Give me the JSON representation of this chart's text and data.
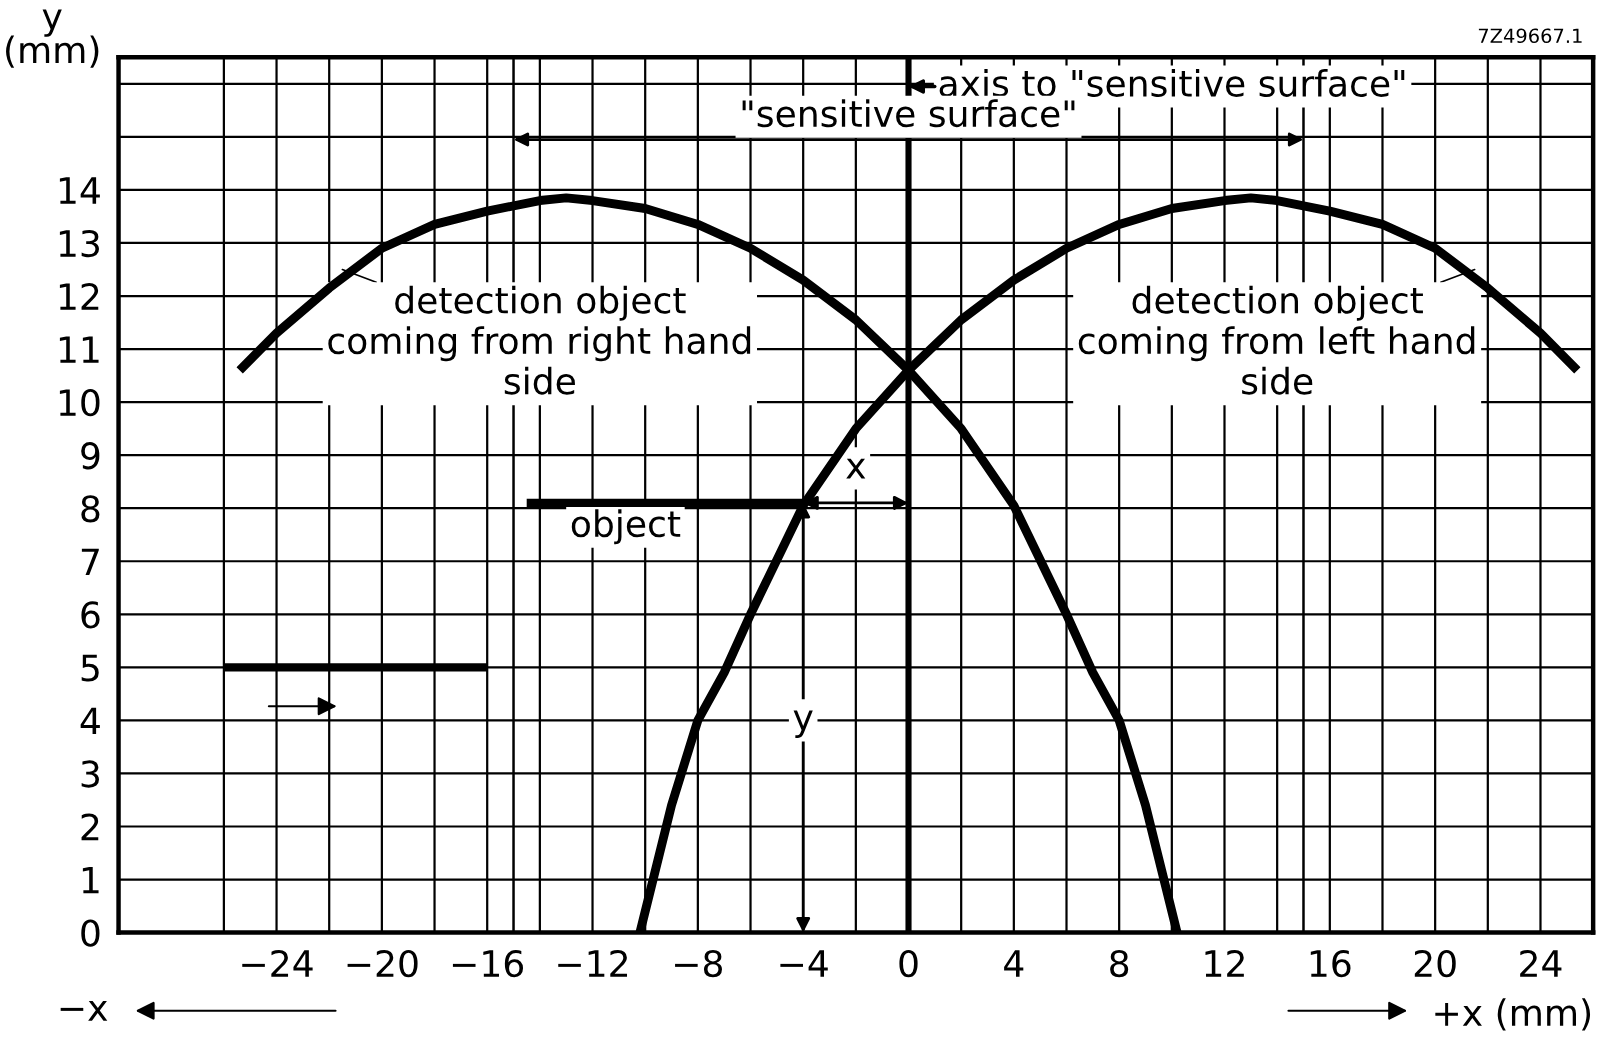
{
  "chart_data": {
    "type": "line",
    "xlabel": "+x (mm)",
    "ylabel": "y\n(mm)",
    "xlim": [
      -30,
      26
    ],
    "ylim": [
      0,
      16.5
    ],
    "xticks": [
      {
        "value": -26,
        "label": null
      },
      -24,
      {
        "value": -22,
        "label": null
      },
      -20,
      {
        "value": -18,
        "label": null
      },
      -16,
      {
        "value": -14,
        "label": null
      },
      -12,
      {
        "value": -10,
        "label": null
      },
      -8,
      {
        "value": -6,
        "label": null
      },
      -4,
      {
        "value": -2,
        "label": null
      },
      0,
      {
        "value": 2,
        "label": null
      },
      4,
      {
        "value": 6,
        "label": null
      },
      8,
      {
        "value": 10,
        "label": null
      },
      12,
      {
        "value": 14,
        "label": null
      },
      16,
      {
        "value": 18,
        "label": null
      },
      20,
      {
        "value": 22,
        "label": null
      },
      24
    ],
    "yticks": [
      0,
      1,
      2,
      3,
      4,
      5,
      6,
      7,
      8,
      9,
      10,
      11,
      12,
      13,
      14,
      {
        "value": 15,
        "label": null
      },
      {
        "value": 16,
        "label": null
      }
    ],
    "grid": true,
    "line_style": "solid",
    "series": [
      {
        "color": "#000000",
        "x": [
          -25.4,
          -24,
          -22,
          -20,
          -18,
          -16,
          -14,
          -13,
          -12,
          -10,
          -8,
          -6,
          -4,
          -2,
          0,
          2,
          4,
          6,
          7,
          8,
          9,
          10.2
        ],
        "values": [
          10.6,
          11.3,
          12.15,
          12.9,
          13.35,
          13.6,
          13.8,
          13.85,
          13.8,
          13.65,
          13.35,
          12.9,
          12.3,
          11.55,
          10.6,
          9.5,
          8.05,
          6.0,
          4.9,
          4.0,
          2.4,
          0
        ]
      },
      {
        "color": "#000000",
        "x": [
          -10.2,
          -9,
          -8,
          -7,
          -6,
          -4,
          -2,
          0,
          2,
          4,
          6,
          8,
          10,
          12,
          13,
          14,
          16,
          18,
          20,
          22,
          24,
          25.4
        ],
        "values": [
          0,
          2.4,
          4.0,
          4.9,
          6.0,
          8.05,
          9.5,
          10.6,
          11.55,
          12.3,
          12.9,
          13.35,
          13.65,
          13.8,
          13.85,
          13.8,
          13.6,
          13.35,
          12.9,
          12.15,
          11.3,
          10.6
        ]
      },
      {
        "color": "#000000",
        "x": [
          -14.5,
          -4
        ],
        "values": [
          8.1,
          8.1
        ]
      },
      {
        "color": "#000000",
        "x": [
          -26,
          -16
        ],
        "values": [
          5,
          5
        ]
      }
    ],
    "ref_lines": [
      {
        "axis": "x",
        "value": 0,
        "label": "axis to \"sensitive surface\"",
        "color": "#000000"
      },
      {
        "axis": "x",
        "value": -15,
        "color": "#000000"
      },
      {
        "axis": "x",
        "value": 15,
        "color": "#000000"
      }
    ],
    "annotations": [
      {
        "text": "detection object\ncoming from right hand\nside",
        "x": -21.5,
        "y": 12.5
      },
      {
        "text": "detection object\ncoming from left hand\nside",
        "x": 21.5,
        "y": 12.5
      },
      "\"sensitive surface\"",
      "object",
      "x",
      {
        "text": "y",
        "x": -4,
        "y": 4
      },
      "−x",
      "7Z49667.1"
    ]
  }
}
